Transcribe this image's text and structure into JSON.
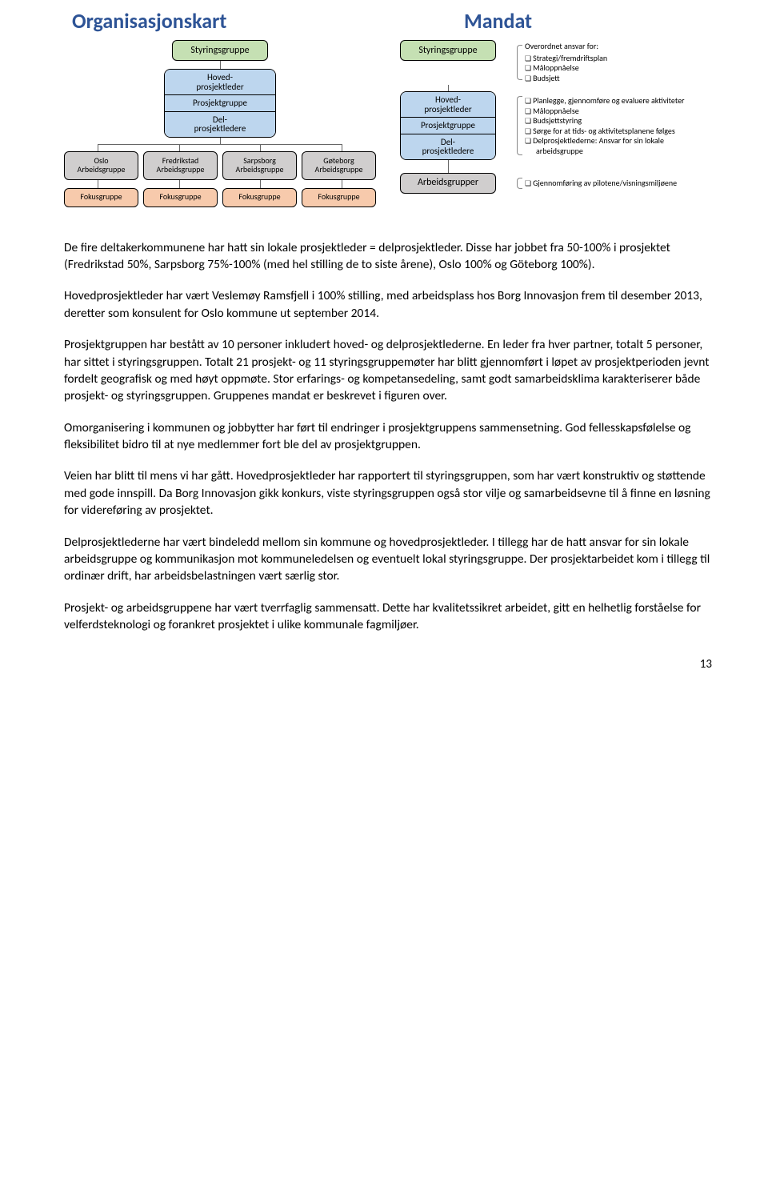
{
  "colors": {
    "title": "#2e5496",
    "green": "#c5e0b3",
    "blue": "#bdd6ee",
    "gray": "#d0cece",
    "pink": "#f7caac",
    "border": "#000000"
  },
  "org": {
    "title": "Organisasjonskart",
    "root": "Styringsgruppe",
    "mid": [
      "Hoved-\nprosjektleder",
      "Prosjektgruppe",
      "Del-\nprosjektledere"
    ],
    "mid_colors": [
      "#bdd6ee",
      "#bdd6ee",
      "#bdd6ee"
    ],
    "leaves": [
      "Oslo\nArbeidsgruppe",
      "Fredrikstad\nArbeidsgruppe",
      "Sarpsborg\nArbeidsgruppe",
      "Gøteborg\nArbeidsgruppe"
    ],
    "focus": [
      "Fokusgruppe",
      "Fokusgruppe",
      "Fokusgruppe",
      "Fokusgruppe"
    ]
  },
  "mandat": {
    "title": "Mandat",
    "rows": [
      {
        "box": "Styringsgruppe",
        "color": "#c5e0b3",
        "heading": "Overordnet ansvar for:",
        "items": [
          "Strategi/fremdriftsplan",
          "Måloppnåelse",
          "Budsjett"
        ]
      },
      {
        "stack": [
          "Hoved-\nprosjektleder",
          "Prosjektgruppe",
          "Del-\nprosjektledere"
        ],
        "color": "#bdd6ee",
        "items": [
          "Planlegge, gjennomføre og evaluere aktiviteter",
          "Måloppnåelse",
          "Budsjettstyring",
          "Sørge for at tids- og aktivitetsplanene følges",
          "Delprosjektlederne: Ansvar for sin lokale arbeidsgruppe"
        ]
      },
      {
        "box": "Arbeidsgrupper",
        "color": "#d0cece",
        "items": [
          "Gjennomføring av pilotene/visningsmiljøene"
        ]
      }
    ]
  },
  "paragraphs": [
    "De fire deltakerkommunene har hatt sin lokale prosjektleder = delprosjektleder. Disse har jobbet fra 50-100% i prosjektet (Fredrikstad 50%, Sarpsborg 75%-100% (med hel stilling de to siste årene), Oslo 100% og Göteborg 100%).",
    "Hovedprosjektleder har vært Veslemøy Ramsfjell i 100% stilling, med arbeidsplass hos Borg Innovasjon frem til desember 2013, deretter som konsulent for Oslo kommune ut september 2014.",
    "Prosjektgruppen har bestått av 10 personer inkludert hoved- og delprosjektlederne. En leder fra hver partner, totalt 5 personer, har sittet i styringsgruppen. Totalt 21 prosjekt- og 11 styringsgruppemøter har blitt gjennomført i løpet av prosjektperioden jevnt fordelt geografisk og med høyt oppmøte. Stor erfarings- og kompetansedeling, samt godt samarbeidsklima karakteriserer både prosjekt- og styringsgruppen. Gruppenes mandat er beskrevet i figuren over.",
    "Omorganisering i kommunen og jobbytter har ført til endringer i prosjektgruppens sammensetning. God fellesskapsfølelse og fleksibilitet bidro til at nye medlemmer fort ble del av prosjektgruppen.",
    "Veien har blitt til mens vi har gått. Hovedprosjektleder har rapportert til styringsgruppen, som har vært konstruktiv og støttende med gode innspill. Da Borg Innovasjon gikk konkurs, viste styringsgruppen også stor vilje og samarbeidsevne til å finne en løsning for videreføring av prosjektet.",
    "Delprosjektlederne har vært bindeledd mellom sin kommune og hovedprosjektleder. I tillegg har de hatt ansvar for sin lokale arbeidsgruppe og kommunikasjon mot kommuneledelsen og eventuelt lokal styringsgruppe. Der prosjektarbeidet kom i tillegg til ordinær drift, har arbeidsbelastningen vært særlig stor.",
    "Prosjekt- og arbeidsgruppene har vært tverrfaglig sammensatt. Dette har kvalitetssikret arbeidet, gitt en helhetlig forståelse for velferdsteknologi og forankret prosjektet i ulike kommunale fagmiljøer."
  ],
  "page_number": "13"
}
